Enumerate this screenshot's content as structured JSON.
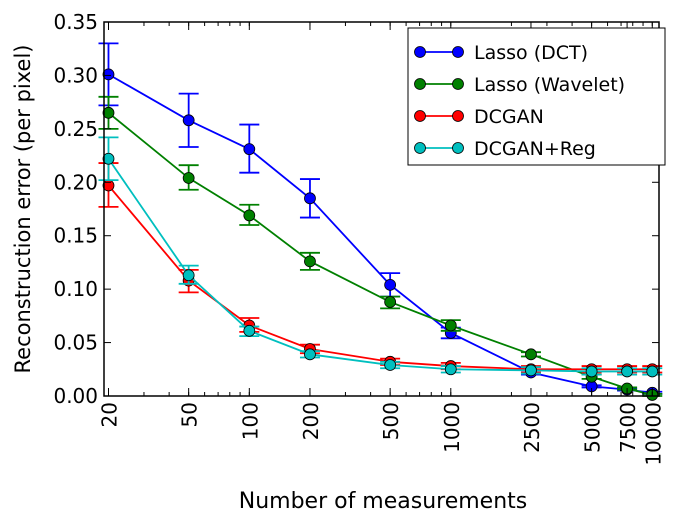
{
  "chart_data": {
    "type": "line",
    "title": "",
    "xlabel": "Number of measurements",
    "ylabel": "Reconstruction error (per pixel)",
    "xscale": "log",
    "xlim": [
      19,
      10800
    ],
    "ylim": [
      0,
      0.35
    ],
    "grid": false,
    "legend_position": "top-right",
    "x": [
      20,
      50,
      100,
      200,
      500,
      1000,
      2500,
      5000,
      7500,
      10000
    ],
    "x_tick_labels": [
      "20",
      "50",
      "100",
      "200",
      "500",
      "1000",
      "2500",
      "5000",
      "7500",
      "10000"
    ],
    "y_ticks": [
      0,
      0.05,
      0.1,
      0.15,
      0.2,
      0.25,
      0.3,
      0.35
    ],
    "y_tick_labels": [
      "0.00",
      "0.05",
      "0.10",
      "0.15",
      "0.20",
      "0.25",
      "0.30",
      "0.35"
    ],
    "series": [
      {
        "name": "Lasso (DCT)",
        "color": "#0000ff",
        "values": [
          0.301,
          0.258,
          0.231,
          0.185,
          0.104,
          0.059,
          0.022,
          0.009,
          0.006,
          0.003
        ],
        "err_low": [
          0.272,
          0.233,
          0.209,
          0.167,
          0.093,
          0.054,
          0.02,
          0.008,
          0.005,
          0.002
        ],
        "err_high": [
          0.33,
          0.283,
          0.254,
          0.203,
          0.115,
          0.064,
          0.024,
          0.01,
          0.007,
          0.004
        ]
      },
      {
        "name": "Lasso (Wavelet)",
        "color": "#008000",
        "values": [
          0.265,
          0.204,
          0.169,
          0.126,
          0.088,
          0.066,
          0.039,
          0.018,
          0.007,
          0.001
        ],
        "err_low": [
          0.25,
          0.193,
          0.16,
          0.118,
          0.082,
          0.061,
          0.037,
          0.016,
          0.006,
          0.0
        ],
        "err_high": [
          0.28,
          0.216,
          0.179,
          0.134,
          0.093,
          0.071,
          0.041,
          0.02,
          0.008,
          0.002
        ]
      },
      {
        "name": "DCGAN",
        "color": "#ff0000",
        "values": [
          0.197,
          0.108,
          0.066,
          0.044,
          0.032,
          0.028,
          0.025,
          0.025,
          0.025,
          0.025
        ],
        "err_low": [
          0.177,
          0.097,
          0.06,
          0.04,
          0.029,
          0.025,
          0.022,
          0.022,
          0.022,
          0.022
        ],
        "err_high": [
          0.218,
          0.118,
          0.073,
          0.048,
          0.035,
          0.031,
          0.028,
          0.028,
          0.028,
          0.028
        ]
      },
      {
        "name": "DCGAN+Reg",
        "color": "#00bfbf",
        "values": [
          0.222,
          0.113,
          0.061,
          0.039,
          0.029,
          0.025,
          0.024,
          0.023,
          0.023,
          0.023
        ],
        "err_low": [
          0.202,
          0.105,
          0.056,
          0.036,
          0.026,
          0.022,
          0.021,
          0.02,
          0.02,
          0.02
        ],
        "err_high": [
          0.242,
          0.122,
          0.065,
          0.042,
          0.032,
          0.028,
          0.027,
          0.026,
          0.026,
          0.026
        ]
      }
    ]
  }
}
